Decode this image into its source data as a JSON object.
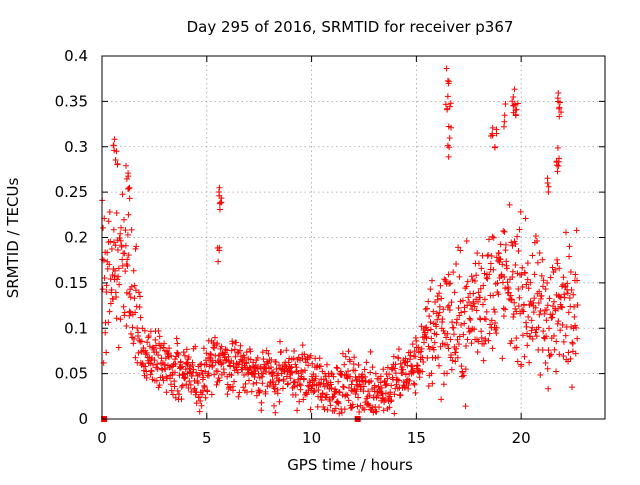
{
  "chart_data": {
    "type": "scatter",
    "title": "Day 295 of 2016, SRMTID for receiver p367",
    "xlabel": "GPS time / hours",
    "ylabel": "SRMTID / TECUs",
    "xlim": [
      0,
      24
    ],
    "ylim": [
      0,
      0.4
    ],
    "x_ticks": [
      0,
      5,
      10,
      15,
      20
    ],
    "x_tick_labels": [
      "0",
      "5",
      "10",
      "15",
      "20"
    ],
    "y_ticks": [
      0,
      0.05,
      0.1,
      0.15,
      0.2,
      0.25,
      0.3,
      0.35,
      0.4
    ],
    "y_tick_labels": [
      "0",
      "0.05",
      "0.1",
      "0.15",
      "0.2",
      "0.25",
      "0.3",
      "0.35",
      "0.4"
    ],
    "grid": true,
    "marker": "plus",
    "color": "#ff0000",
    "zero_markers": [
      0.1,
      12.2
    ],
    "trend": [
      [
        0.0,
        0.16
      ],
      [
        0.5,
        0.15
      ],
      [
        1.0,
        0.17
      ],
      [
        1.5,
        0.13
      ],
      [
        2.0,
        0.07
      ],
      [
        3.0,
        0.055
      ],
      [
        4.0,
        0.05
      ],
      [
        5.0,
        0.045
      ],
      [
        5.5,
        0.07
      ],
      [
        6.0,
        0.06
      ],
      [
        7.0,
        0.055
      ],
      [
        8.0,
        0.045
      ],
      [
        9.0,
        0.05
      ],
      [
        10.0,
        0.045
      ],
      [
        11.0,
        0.035
      ],
      [
        12.0,
        0.04
      ],
      [
        13.0,
        0.03
      ],
      [
        14.0,
        0.04
      ],
      [
        15.0,
        0.06
      ],
      [
        15.5,
        0.09
      ],
      [
        16.0,
        0.11
      ],
      [
        17.0,
        0.1
      ],
      [
        18.0,
        0.13
      ],
      [
        19.0,
        0.15
      ],
      [
        20.0,
        0.14
      ],
      [
        21.0,
        0.11
      ],
      [
        22.0,
        0.12
      ],
      [
        22.7,
        0.14
      ]
    ],
    "spikes": [
      [
        0.6,
        0.31
      ],
      [
        0.7,
        0.3
      ],
      [
        1.2,
        0.29
      ],
      [
        1.3,
        0.26
      ],
      [
        5.6,
        0.255
      ],
      [
        5.65,
        0.25
      ],
      [
        5.55,
        0.2
      ],
      [
        16.5,
        0.39
      ],
      [
        16.45,
        0.36
      ],
      [
        16.6,
        0.35
      ],
      [
        16.55,
        0.31
      ],
      [
        18.6,
        0.34
      ],
      [
        18.8,
        0.32
      ],
      [
        19.2,
        0.35
      ],
      [
        19.7,
        0.37
      ],
      [
        19.6,
        0.36
      ],
      [
        19.8,
        0.35
      ],
      [
        21.8,
        0.365
      ],
      [
        21.85,
        0.35
      ],
      [
        21.7,
        0.3
      ],
      [
        21.75,
        0.29
      ],
      [
        21.3,
        0.27
      ]
    ],
    "spread": 0.03,
    "points_per_hour": 60
  }
}
